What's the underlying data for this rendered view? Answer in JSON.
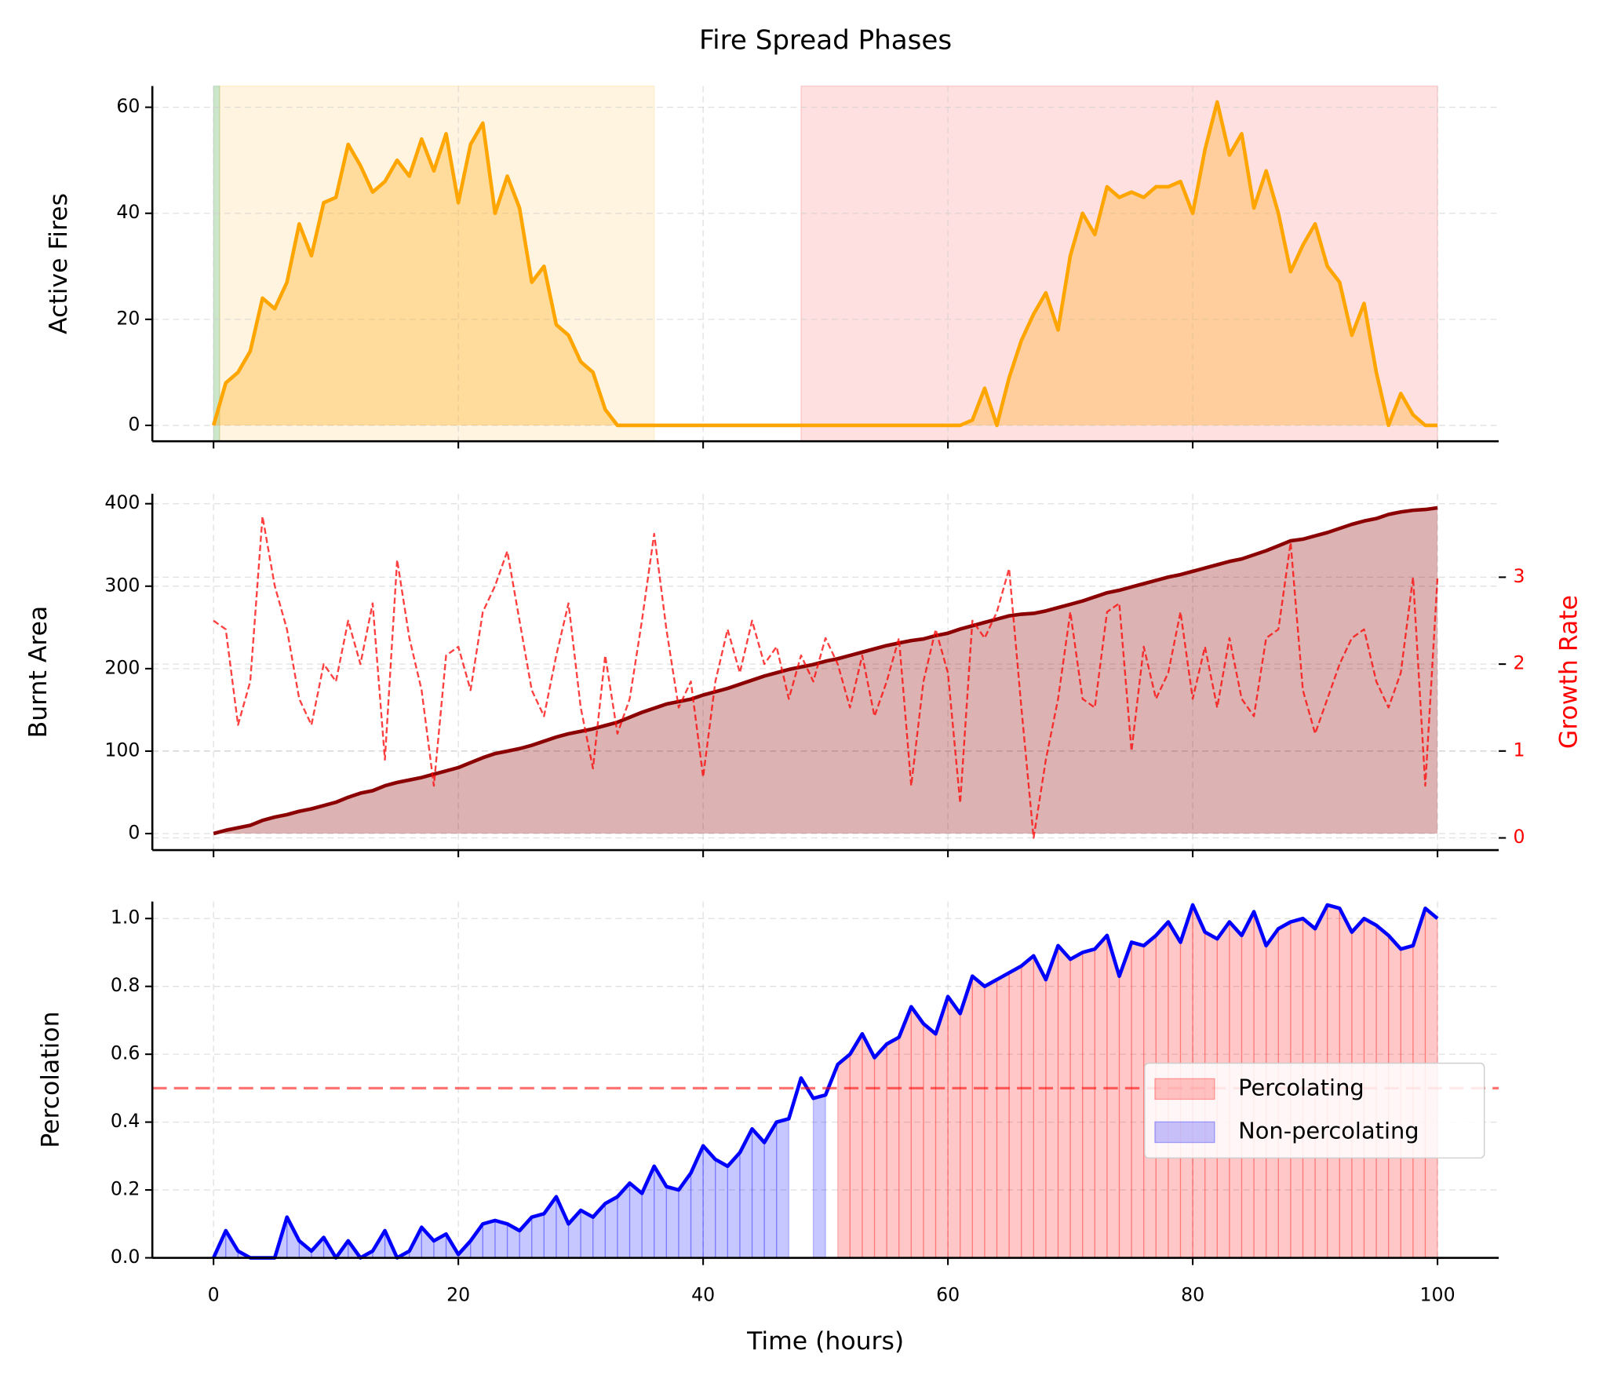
{
  "chart_data": {
    "type": "subplots",
    "title": "Fire Spread Phases",
    "xlabel": "Time (hours)",
    "x": [
      0,
      1,
      2,
      3,
      4,
      5,
      6,
      7,
      8,
      9,
      10,
      11,
      12,
      13,
      14,
      15,
      16,
      17,
      18,
      19,
      20,
      21,
      22,
      23,
      24,
      25,
      26,
      27,
      28,
      29,
      30,
      31,
      32,
      33,
      34,
      35,
      36,
      37,
      38,
      39,
      40,
      41,
      42,
      43,
      44,
      45,
      46,
      47,
      48,
      49,
      50,
      51,
      52,
      53,
      54,
      55,
      56,
      57,
      58,
      59,
      60,
      61,
      62,
      63,
      64,
      65,
      66,
      67,
      68,
      69,
      70,
      71,
      72,
      73,
      74,
      75,
      76,
      77,
      78,
      79,
      80,
      81,
      82,
      83,
      84,
      85,
      86,
      87,
      88,
      89,
      90,
      91,
      92,
      93,
      94,
      95,
      96,
      97,
      98,
      99,
      100
    ],
    "xlim": [
      -5,
      105
    ],
    "xticks": [
      0,
      20,
      40,
      60,
      80,
      100
    ],
    "grid": true,
    "panels": [
      {
        "ylabel": "Active Fires",
        "ylim": [
          -3,
          64
        ],
        "yticks": [
          0,
          20,
          40,
          60
        ],
        "spans": [
          {
            "start": 0,
            "end": 0.5,
            "color": "green"
          },
          {
            "start": 0.5,
            "end": 36,
            "color": "orange"
          },
          {
            "start": 48,
            "end": 100,
            "color": "red"
          }
        ],
        "series": [
          {
            "type": "area",
            "color": "orange",
            "values": [
              0,
              8,
              10,
              14,
              24,
              22,
              27,
              38,
              32,
              42,
              43,
              53,
              49,
              44,
              46,
              50,
              47,
              54,
              48,
              55,
              42,
              53,
              57,
              40,
              47,
              41,
              27,
              30,
              19,
              17,
              12,
              10,
              3,
              0,
              0,
              0,
              0,
              0,
              0,
              0,
              0,
              0,
              0,
              0,
              0,
              0,
              0,
              0,
              0,
              0,
              0,
              0,
              0,
              0,
              0,
              0,
              0,
              0,
              0,
              0,
              0,
              0,
              1,
              7,
              0,
              9,
              16,
              21,
              25,
              18,
              32,
              40,
              36,
              45,
              43,
              44,
              43,
              45,
              45,
              46,
              40,
              52,
              61,
              51,
              55,
              41,
              48,
              40,
              29,
              34,
              38,
              30,
              27,
              17,
              23,
              10,
              0,
              6,
              2,
              0,
              0
            ]
          }
        ]
      },
      {
        "ylabel": "Burnt Area",
        "ylim": [
          -20,
          412
        ],
        "yticks": [
          0,
          100,
          200,
          300,
          400
        ],
        "y2label": "Growth Rate",
        "y2color": "red",
        "y2lim": [
          -0.14,
          3.96
        ],
        "y2ticks": [
          0,
          1,
          2,
          3
        ],
        "series": [
          {
            "type": "area",
            "color": "darkred",
            "values": [
              0,
              4,
              7,
              10,
              16,
              20,
              23,
              27,
              30,
              34,
              38,
              44,
              49,
              52,
              58,
              62,
              65,
              68,
              72,
              76,
              80,
              86,
              92,
              97,
              100,
              103,
              107,
              112,
              117,
              121,
              124,
              127,
              131,
              135,
              141,
              147,
              152,
              157,
              160,
              163,
              168,
              172,
              176,
              181,
              186,
              191,
              195,
              199,
              202,
              205,
              209,
              212,
              216,
              220,
              224,
              228,
              231,
              234,
              236,
              240,
              243,
              248,
              252,
              256,
              260,
              264,
              266,
              267,
              270,
              274,
              278,
              282,
              287,
              292,
              295,
              299,
              303,
              307,
              311,
              314,
              318,
              322,
              326,
              330,
              333,
              338,
              343,
              349,
              355,
              357,
              361,
              365,
              370,
              375,
              379,
              382,
              387,
              390,
              392,
              393,
              395
            ]
          },
          {
            "type": "line",
            "style": "dashed",
            "axis": "y2",
            "color": "red",
            "values": [
              2.5,
              2.4,
              1.3,
              1.8,
              3.7,
              2.9,
              2.4,
              1.6,
              1.3,
              2.0,
              1.8,
              2.5,
              2.0,
              2.7,
              0.9,
              3.2,
              2.3,
              1.7,
              0.6,
              2.1,
              2.2,
              1.7,
              2.6,
              2.9,
              3.3,
              2.5,
              1.7,
              1.4,
              2.1,
              2.7,
              1.5,
              0.8,
              2.1,
              1.2,
              1.6,
              2.5,
              3.5,
              2.4,
              1.5,
              1.8,
              0.7,
              1.8,
              2.4,
              1.9,
              2.5,
              2.0,
              2.2,
              1.6,
              2.1,
              1.8,
              2.3,
              2.0,
              1.5,
              2.1,
              1.4,
              1.8,
              2.3,
              0.6,
              1.8,
              2.4,
              1.9,
              0.4,
              2.5,
              2.3,
              2.6,
              3.1,
              1.5,
              0.0,
              0.9,
              1.6,
              2.6,
              1.6,
              1.5,
              2.6,
              2.7,
              1.0,
              2.2,
              1.6,
              1.9,
              2.6,
              1.6,
              2.2,
              1.5,
              2.3,
              1.6,
              1.4,
              2.3,
              2.4,
              3.4,
              1.7,
              1.2,
              1.6,
              2.0,
              2.3,
              2.4,
              1.8,
              1.5,
              1.9,
              3.0,
              0.6,
              3.0
            ]
          }
        ]
      },
      {
        "ylabel": "Percolation",
        "ylim": [
          0,
          1.05
        ],
        "yticks": [
          {
            "value": 0,
            "label": "0.0"
          },
          {
            "value": 0.2,
            "label": "0.2"
          },
          {
            "value": 0.4,
            "label": "0.4"
          },
          {
            "value": 0.6,
            "label": "0.6"
          },
          {
            "value": 0.8,
            "label": "0.8"
          },
          {
            "value": 1,
            "label": "1.0"
          }
        ],
        "threshold": 0.5,
        "legend": "center right",
        "regions": [
          {
            "name": "Percolating",
            "color": "red",
            "where": "above"
          },
          {
            "name": "Non-percolating",
            "color": "blue",
            "where": "below"
          }
        ],
        "series": [
          {
            "type": "line",
            "color": "blue",
            "values": [
              0,
              0.08,
              0.02,
              0,
              0,
              0,
              0.12,
              0.05,
              0.02,
              0.06,
              0,
              0.05,
              0,
              0.02,
              0.08,
              0,
              0.02,
              0.09,
              0.05,
              0.07,
              0.01,
              0.05,
              0.1,
              0.11,
              0.1,
              0.08,
              0.12,
              0.13,
              0.18,
              0.1,
              0.14,
              0.12,
              0.16,
              0.18,
              0.22,
              0.19,
              0.27,
              0.21,
              0.2,
              0.25,
              0.33,
              0.29,
              0.27,
              0.31,
              0.38,
              0.34,
              0.4,
              0.41,
              0.53,
              0.47,
              0.48,
              0.57,
              0.6,
              0.66,
              0.59,
              0.63,
              0.65,
              0.74,
              0.69,
              0.66,
              0.77,
              0.72,
              0.83,
              0.8,
              0.82,
              0.84,
              0.86,
              0.89,
              0.82,
              0.92,
              0.88,
              0.9,
              0.91,
              0.95,
              0.83,
              0.93,
              0.92,
              0.95,
              0.99,
              0.93,
              1.04,
              0.96,
              0.94,
              0.99,
              0.95,
              1.02,
              0.92,
              0.97,
              0.99,
              1.0,
              0.97,
              1.04,
              1.03,
              0.96,
              1.0,
              0.98,
              0.95,
              0.91,
              0.92,
              1.03,
              1.0
            ]
          }
        ]
      }
    ]
  }
}
